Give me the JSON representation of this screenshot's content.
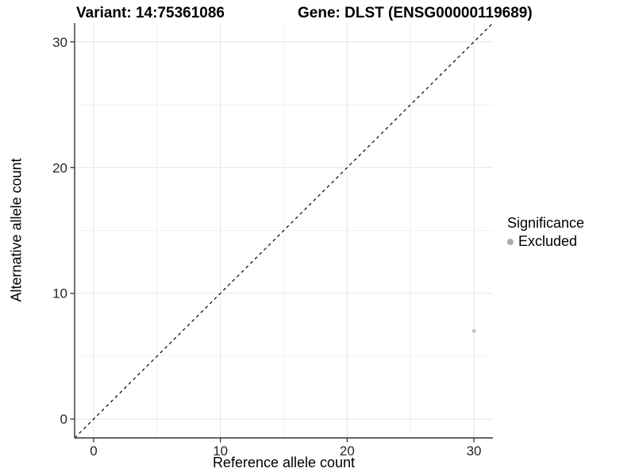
{
  "titles": {
    "variant": "Variant: 14:75361086",
    "gene": "Gene: DLST (ENSG00000119689)"
  },
  "axes": {
    "x_label": "Reference allele count",
    "y_label": "Alternative allele count"
  },
  "legend": {
    "title": "Significance",
    "items": [
      {
        "label": "Excluded",
        "color": "#ababab"
      }
    ]
  },
  "chart_data": {
    "type": "scatter",
    "title": "Variant: 14:75361086 — Gene: DLST (ENSG00000119689)",
    "xlabel": "Reference allele count",
    "ylabel": "Alternative allele count",
    "xlim": [
      -1.5,
      31.5
    ],
    "ylim": [
      -1.5,
      31.5
    ],
    "x_ticks": [
      0,
      10,
      20,
      30
    ],
    "y_ticks": [
      0,
      10,
      20,
      30
    ],
    "x_minor_ticks": [
      5,
      15,
      25
    ],
    "y_minor_ticks": [
      5,
      15,
      25
    ],
    "grid": true,
    "legend_position": "right",
    "series": [
      {
        "name": "Excluded",
        "color": "#bfbfbf",
        "points": [
          {
            "x": 30,
            "y": 7
          }
        ]
      }
    ],
    "reference_line": {
      "type": "identity",
      "style": "dashed",
      "from": [
        -1.5,
        -1.5
      ],
      "to": [
        31.5,
        31.5
      ],
      "color": "#000000"
    }
  },
  "style": {
    "background": "#ffffff",
    "grid_major": "#e5e5e5",
    "grid_minor": "#f1f1f1",
    "axis_line": "#333333",
    "tick_mark": "#333333",
    "tick_label_color": "#262626",
    "point_color": "#bfbfbf",
    "dashed_line_color": "#000000"
  }
}
